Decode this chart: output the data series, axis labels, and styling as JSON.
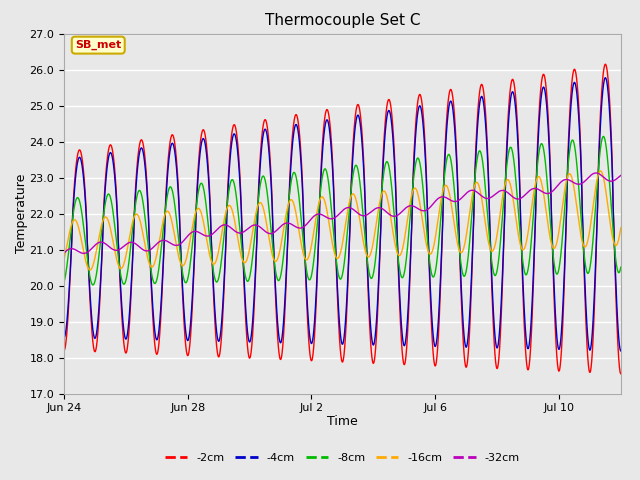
{
  "title": "Thermocouple Set C",
  "xlabel": "Time",
  "ylabel": "Temperature",
  "ylim": [
    17.0,
    27.0
  ],
  "yticks": [
    17.0,
    18.0,
    19.0,
    20.0,
    21.0,
    22.0,
    23.0,
    24.0,
    25.0,
    26.0,
    27.0
  ],
  "series_colors": [
    "#ff0000",
    "#0000cc",
    "#00bb00",
    "#ffaa00",
    "#bb00bb"
  ],
  "series_labels": [
    "-2cm",
    "-4cm",
    "-8cm",
    "-16cm",
    "-32cm"
  ],
  "legend_label": "SB_met",
  "legend_label_color": "#cc0000",
  "legend_bg": "#ffffcc",
  "legend_border": "#ccaa00",
  "bg_color": "#e8e8e8",
  "plot_bg": "#e8e8e8",
  "white_bg": "#ffffff",
  "grid_color": "#ffffff",
  "xtick_labels": [
    "Jun 24",
    "Jun 28",
    "Jul 2",
    "Jul 6",
    "Jul 10"
  ],
  "xtick_positions": [
    0,
    4,
    8,
    12,
    16
  ],
  "n_days": 18,
  "n_points": 3600
}
